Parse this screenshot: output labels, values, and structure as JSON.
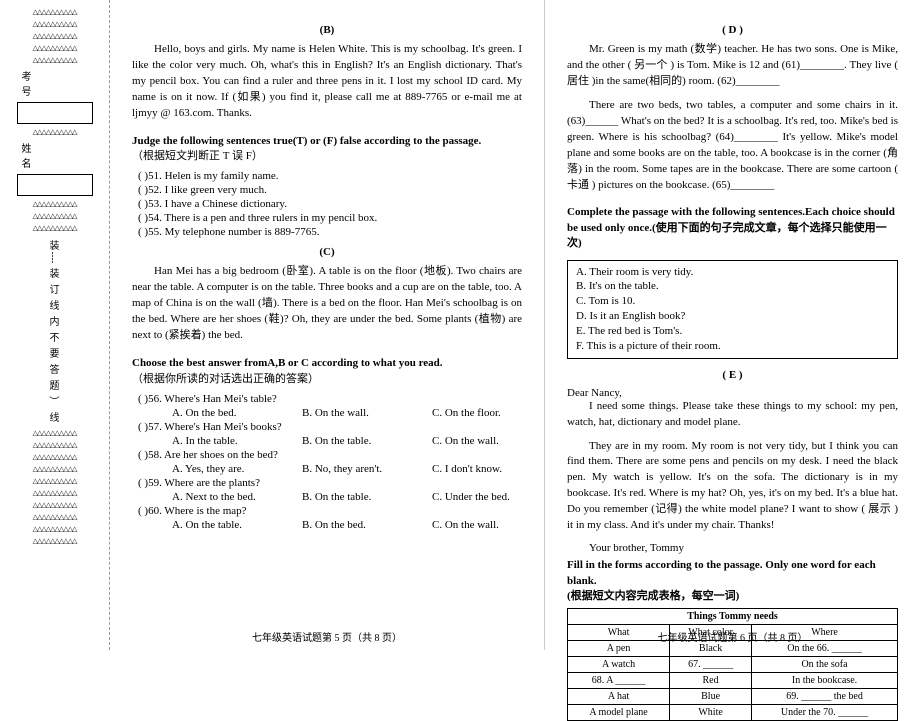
{
  "binding": {
    "label1": "考    号",
    "label2": "姓    名",
    "vchars": [
      "装",
      "┊",
      "装",
      "订",
      "线",
      "内",
      "不",
      "要",
      "答",
      "题",
      "︶",
      "线"
    ],
    "tri": "△△△△△△△△△△"
  },
  "B": {
    "title": "(B)",
    "passage": "Hello, boys and girls. My name is Helen White. This is my schoolbag. It's green. I like the color very much. Oh, what's this in English? It's an English dictionary. That's my pencil box. You can find a ruler and three pens in it. I lost my school ID card. My name is on it now. If (如果) you find it, please call me at 889-7765 or e-mail me at ljmyy @ 163.com. Thanks.",
    "instr": "Judge the following sentences true(T) or (F) false according to the passage.",
    "instr_cn": "（根据短文判断正 T 误 F）",
    "q": [
      " )51. Helen is my family name.",
      " )52. I like green very much.",
      " )53. I have a Chinese dictionary.",
      " )54. There is a pen and three rulers in my pencil box.",
      " )55. My telephone number is 889-7765."
    ]
  },
  "C": {
    "title": "(C)",
    "passage": "Han Mei has a big bedroom (卧室). A table is on the floor (地板). Two chairs are near the table. A computer is on the table. Three books and a cup are on the table, too. A map of China is on the wall (墙). There is a bed on the floor. Han Mei's schoolbag is on the bed. Where are her shoes (鞋)? Oh, they are under the bed. Some plants (植物) are next to (紧挨着) the bed.",
    "instr": "Choose the best answer fromA,B or C according to what you read.",
    "instr_cn": "（根据你所读的对话选出正确的答案）",
    "q": [
      {
        "s": " )56. Where's Han Mei's table?",
        "o": [
          "A. On the bed.",
          "B. On the wall.",
          "C. On the floor."
        ]
      },
      {
        "s": " )57. Where's Han Mei's books?",
        "o": [
          "A. In the table.",
          "B. On the table.",
          "C. On the wall."
        ]
      },
      {
        "s": " )58. Are her shoes on the bed?",
        "o": [
          "A. Yes, they are.",
          "B. No, they aren't.",
          "C. I don't know."
        ]
      },
      {
        "s": " )59. Where are the plants?",
        "o": [
          "A. Next to the bed.",
          "B. On the table.",
          "C. Under the bed."
        ]
      },
      {
        "s": " )60. Where is the map?",
        "o": [
          "A. On the table.",
          "B. On the bed.",
          "C. On the wall."
        ]
      }
    ]
  },
  "D": {
    "title": "( D )",
    "passage1": "Mr. Green is my math (数学) teacher. He has two sons. One is Mike, and the other ( 另一个 ) is Tom. Mike is 12 and (61)________. They live ( 居住 )in the same(相同的) room. (62)________",
    "passage2": "There are two beds, two tables, a computer and some chairs in it. (63)______ What's on the bed? It is a schoolbag. It's red, too. Mike's bed is green. Where is his schoolbag? (64)________ It's yellow. Mike's model plane and some books are on the table, too. A bookcase is in the corner (角落) in the room. Some tapes are in the bookcase. There are some cartoon ( 卡通 ) pictures on the bookcase. (65)________",
    "instr": "Complete the passage with the following sentences.Each choice should be used only once.(使用下面的句子完成文章，每个选择只能使用一次)",
    "opts": [
      "A. Their room is very tidy.",
      "B. It's on the table.",
      "C. Tom is 10.",
      "D. Is it an English book?",
      "E. The red bed is Tom's.",
      "F. This is a picture of their room."
    ]
  },
  "E": {
    "title": "( E )",
    "l1": "Dear Nancy,",
    "p1": "I need some things. Please take these things to my school: my pen, watch, hat, dictionary and model plane.",
    "p2": "They are in my room. My room is not very tidy, but I think you can find them. There are some pens and pencils on my desk. I need the black pen. My watch is yellow. It's on the sofa. The dictionary is in my bookcase. It's red. Where is my hat? Oh, yes, it's on my bed. It's a blue hat. Do you remember (记得) the white model plane? I want to show ( 展示 ) it in my class. And it's under my chair. Thanks!",
    "sig": "Your brother, Tommy",
    "instr": "Fill in the forms according to the passage. Only one word for each blank.",
    "instr_cn": "(根据短文内容完成表格，每空一词)",
    "table": {
      "title": "Things Tommy needs",
      "head": [
        "What",
        "What color",
        "Where"
      ],
      "rows": [
        [
          "A pen",
          "Black",
          "On the 66. ______"
        ],
        [
          "A watch",
          "67. ______",
          "On the sofa"
        ],
        [
          "68. A ______",
          "Red",
          "In the bookcase."
        ],
        [
          "A hat",
          "Blue",
          "69. ______ the bed"
        ],
        [
          "A model plane",
          "White",
          "Under the 70. ______"
        ]
      ]
    }
  },
  "footer": {
    "p5": "七年级英语试题第 5 页（共 8 页）",
    "p6": "七年级英语试题第 6 页（共 8 页）"
  }
}
